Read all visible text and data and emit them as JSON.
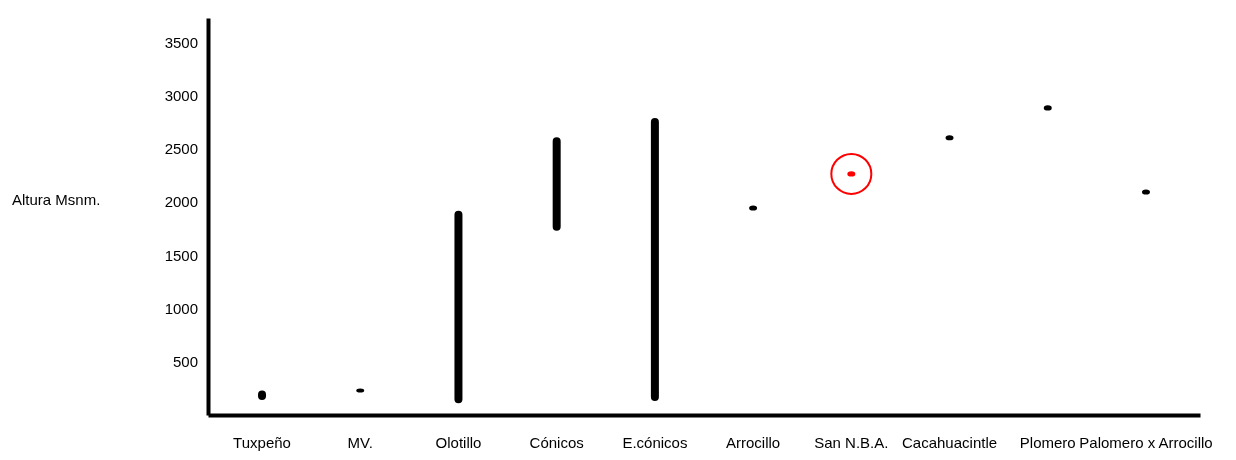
{
  "chart_data": {
    "type": "bar",
    "ylabel": "Altura Msnm.",
    "categories": [
      "Tuxpeño",
      "MV.",
      "Olotillo",
      "Cónicos",
      "E.cónicos",
      "Arrocillo",
      "San N.B.A.",
      "Cacahuacintle",
      "Plomero",
      "Palomero x Arrocillo"
    ],
    "base": [
      150,
      220,
      120,
      1740,
      140,
      1930,
      2250,
      2590,
      2870,
      2080
    ],
    "values": [
      70,
      20,
      1790,
      860,
      2640,
      30,
      30,
      30,
      30,
      30
    ],
    "colors": [
      "#000000",
      "#000000",
      "#000000",
      "#000000",
      "#000000",
      "#000000",
      "#ff0000",
      "#000000",
      "#000000",
      "#000000"
    ],
    "ylim": [
      0,
      3730
    ],
    "yticks": [
      500,
      1000,
      1500,
      2000,
      2500,
      3000,
      3500
    ],
    "grid": false
  }
}
